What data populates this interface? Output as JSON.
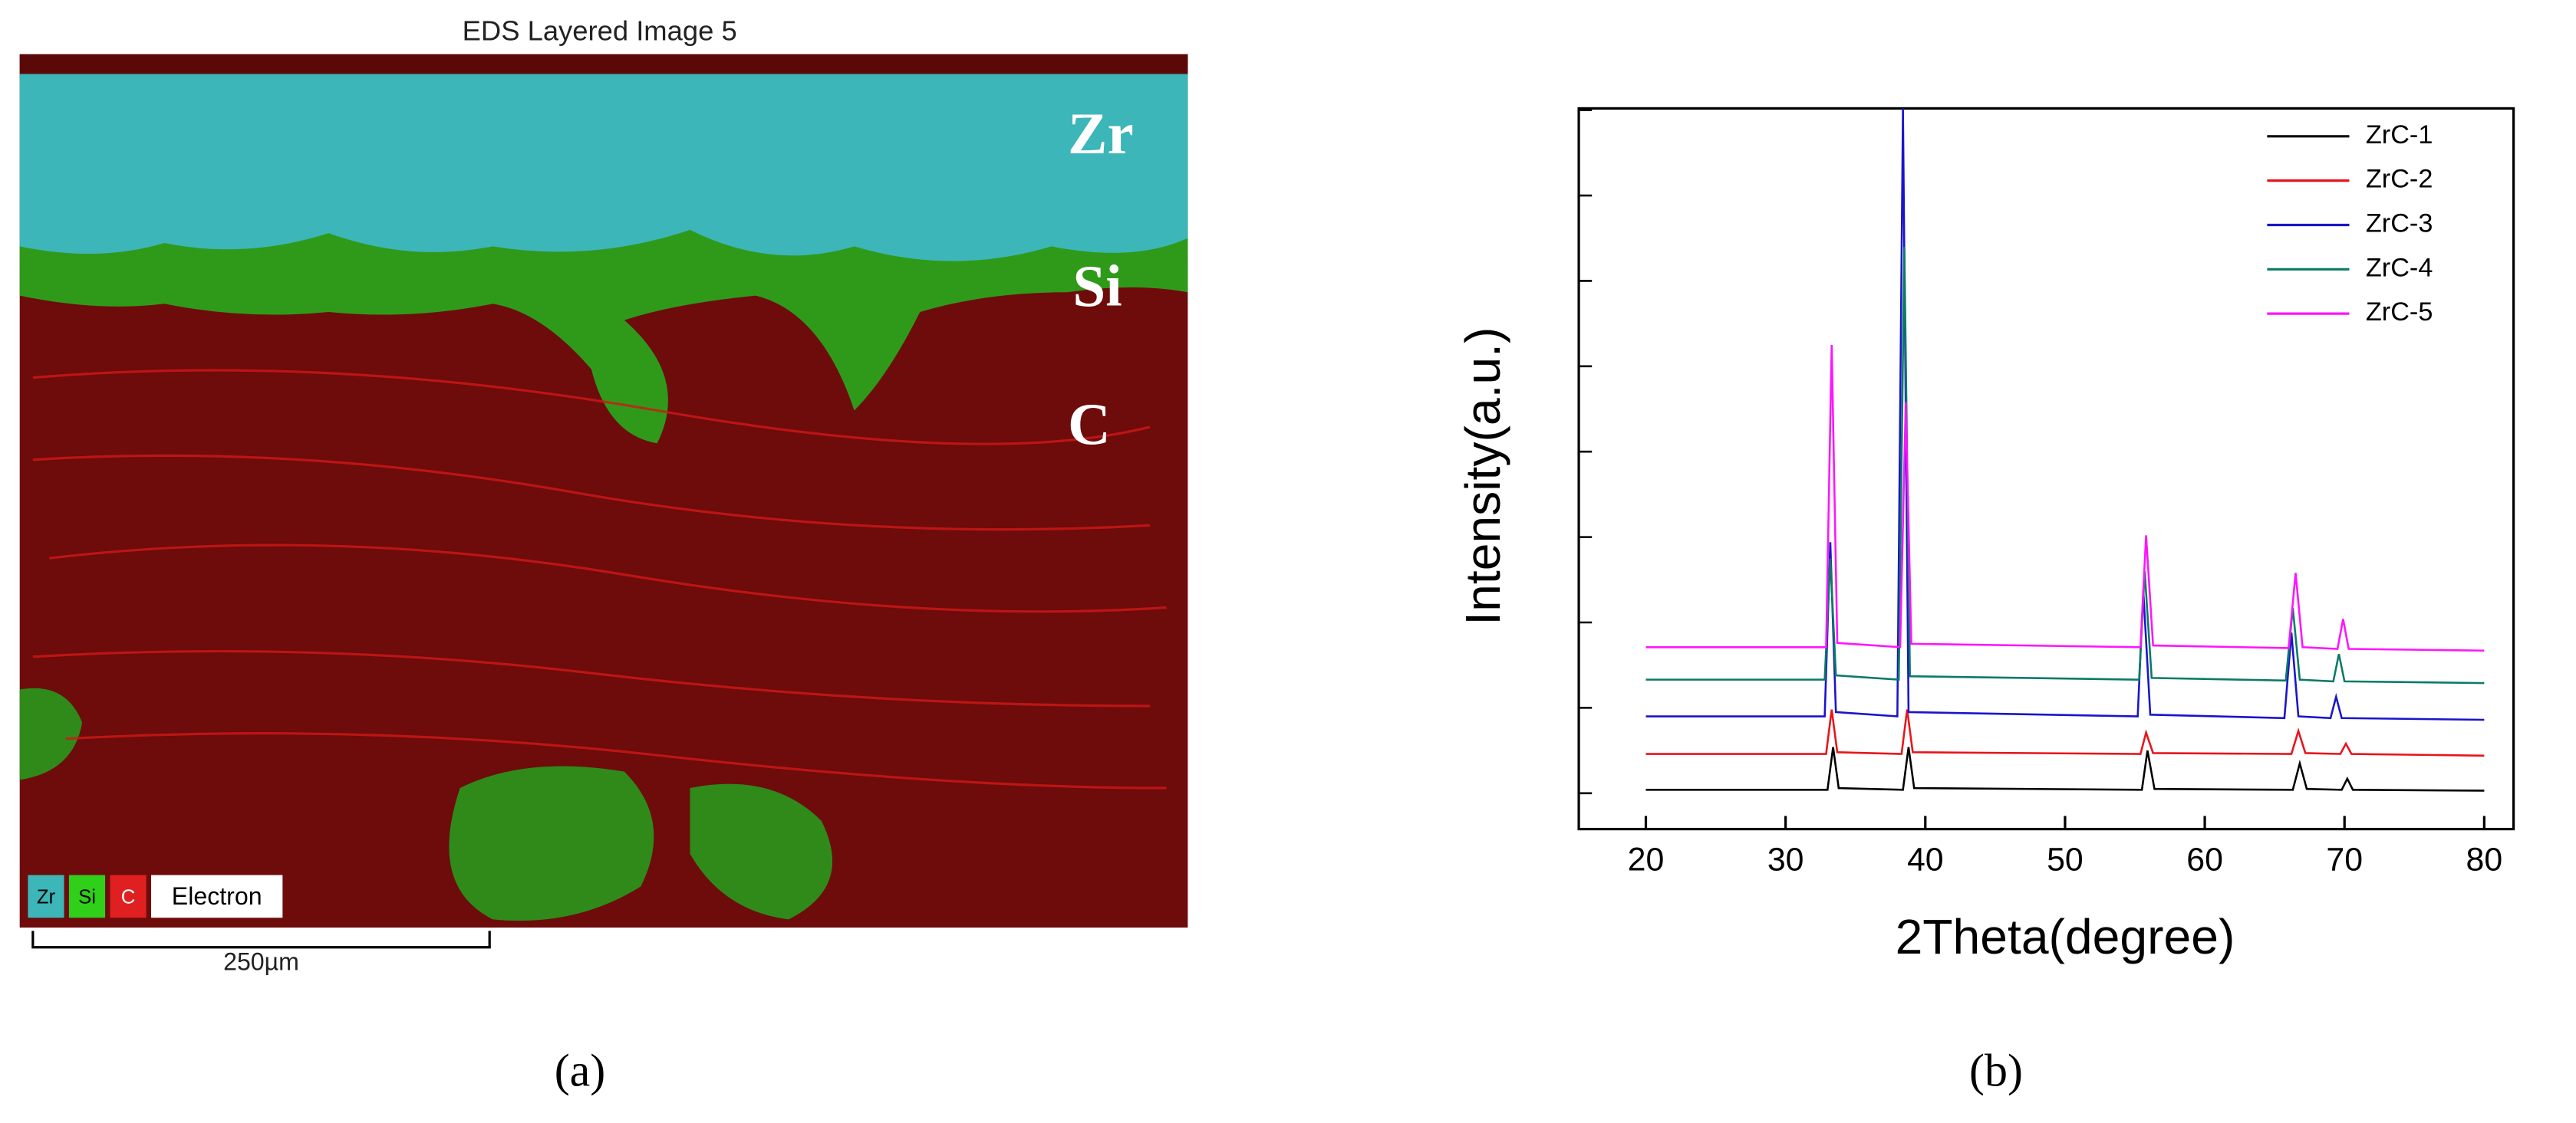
{
  "panel_a": {
    "title": "EDS Layered Image 5",
    "layer_labels": [
      "Zr",
      "Si",
      "C"
    ],
    "legend": [
      "Zr",
      "Si",
      "C",
      "Electron"
    ],
    "scale_bar": "250µm",
    "caption": "(a)"
  },
  "chart_data": {
    "type": "line",
    "caption": "(b)",
    "x_label": "2Theta(degree)",
    "y_label": "Intensity(a.u.)",
    "xlim": [
      15.2,
      82.1
    ],
    "xticks": [
      20,
      30,
      40,
      50,
      60,
      70,
      80
    ],
    "ylim": [
      -0.42,
      8.02
    ],
    "yticks": [
      0,
      1,
      2,
      3,
      4,
      5,
      6,
      7,
      8
    ],
    "legend_position": "upper right",
    "series": [
      {
        "name": "ZrC-1",
        "color": "#000000",
        "x": [
          20,
          33.0,
          33.4,
          33.8,
          38.4,
          38.8,
          39.2,
          55.5,
          55.9,
          56.4,
          66.3,
          66.8,
          67.3,
          69.8,
          70.2,
          70.6,
          80
        ],
        "values": [
          0.04,
          0.04,
          0.54,
          0.06,
          0.04,
          0.54,
          0.06,
          0.04,
          0.5,
          0.05,
          0.04,
          0.35,
          0.05,
          0.04,
          0.17,
          0.04,
          0.03
        ]
      },
      {
        "name": "ZrC-2",
        "color": "#e8141b",
        "x": [
          20,
          32.9,
          33.3,
          33.7,
          38.3,
          38.7,
          39.1,
          55.4,
          55.8,
          56.3,
          66.2,
          66.7,
          67.2,
          69.7,
          70.1,
          70.5,
          80
        ],
        "values": [
          0.46,
          0.46,
          0.98,
          0.48,
          0.46,
          0.98,
          0.48,
          0.46,
          0.71,
          0.47,
          0.46,
          0.73,
          0.47,
          0.46,
          0.58,
          0.46,
          0.44
        ]
      },
      {
        "name": "ZrC-3",
        "color": "#1a14cc",
        "x": [
          20,
          32.8,
          33.2,
          33.6,
          38.0,
          38.4,
          38.8,
          55.2,
          55.6,
          56.1,
          65.7,
          66.2,
          66.7,
          69.0,
          69.4,
          69.8,
          80
        ],
        "values": [
          0.9,
          0.9,
          2.94,
          0.95,
          0.9,
          8.02,
          0.95,
          0.9,
          2.37,
          0.92,
          0.88,
          1.88,
          0.9,
          0.88,
          1.13,
          0.88,
          0.86
        ]
      },
      {
        "name": "ZrC-4",
        "color": "#0b7a68",
        "x": [
          20,
          32.8,
          33.2,
          33.6,
          38.1,
          38.5,
          38.9,
          55.3,
          55.7,
          56.2,
          65.8,
          66.3,
          66.8,
          69.2,
          69.6,
          70.0,
          80
        ],
        "values": [
          1.33,
          1.33,
          2.75,
          1.38,
          1.33,
          6.4,
          1.37,
          1.33,
          2.6,
          1.35,
          1.32,
          2.17,
          1.33,
          1.31,
          1.63,
          1.31,
          1.29
        ]
      },
      {
        "name": "ZrC-5",
        "color": "#ff14ff",
        "x": [
          20,
          32.9,
          33.3,
          33.7,
          38.2,
          38.6,
          39.0,
          55.4,
          55.8,
          56.3,
          66.0,
          66.5,
          67.0,
          69.5,
          69.9,
          70.3,
          80
        ],
        "values": [
          1.71,
          1.71,
          5.25,
          1.76,
          1.71,
          4.58,
          1.75,
          1.71,
          3.02,
          1.73,
          1.7,
          2.58,
          1.71,
          1.69,
          2.04,
          1.69,
          1.67
        ]
      }
    ]
  }
}
